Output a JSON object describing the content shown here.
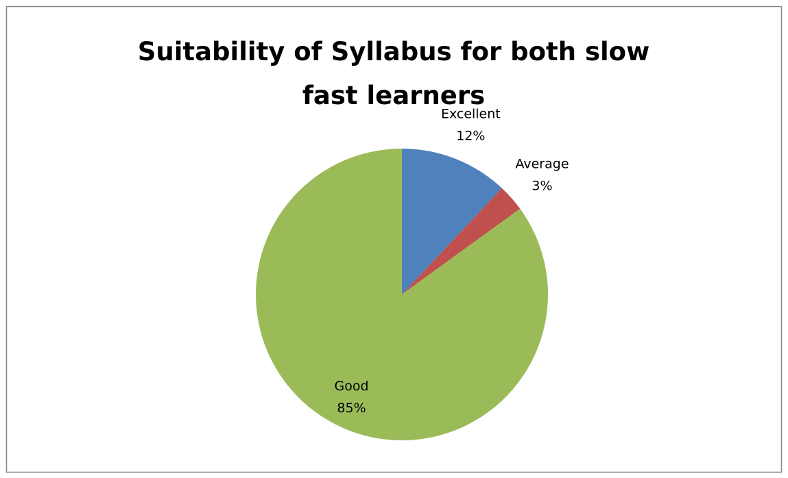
{
  "chart_data": {
    "type": "pie",
    "title": "Suitability of Syllabus for both slow fast learners",
    "categories": [
      "Excellent",
      "Average",
      "Good"
    ],
    "values": [
      12,
      3,
      85
    ],
    "value_labels": [
      "12%",
      "3%",
      "85%"
    ],
    "colors": [
      "#4f81bd",
      "#c0504d",
      "#9bbb59"
    ]
  }
}
